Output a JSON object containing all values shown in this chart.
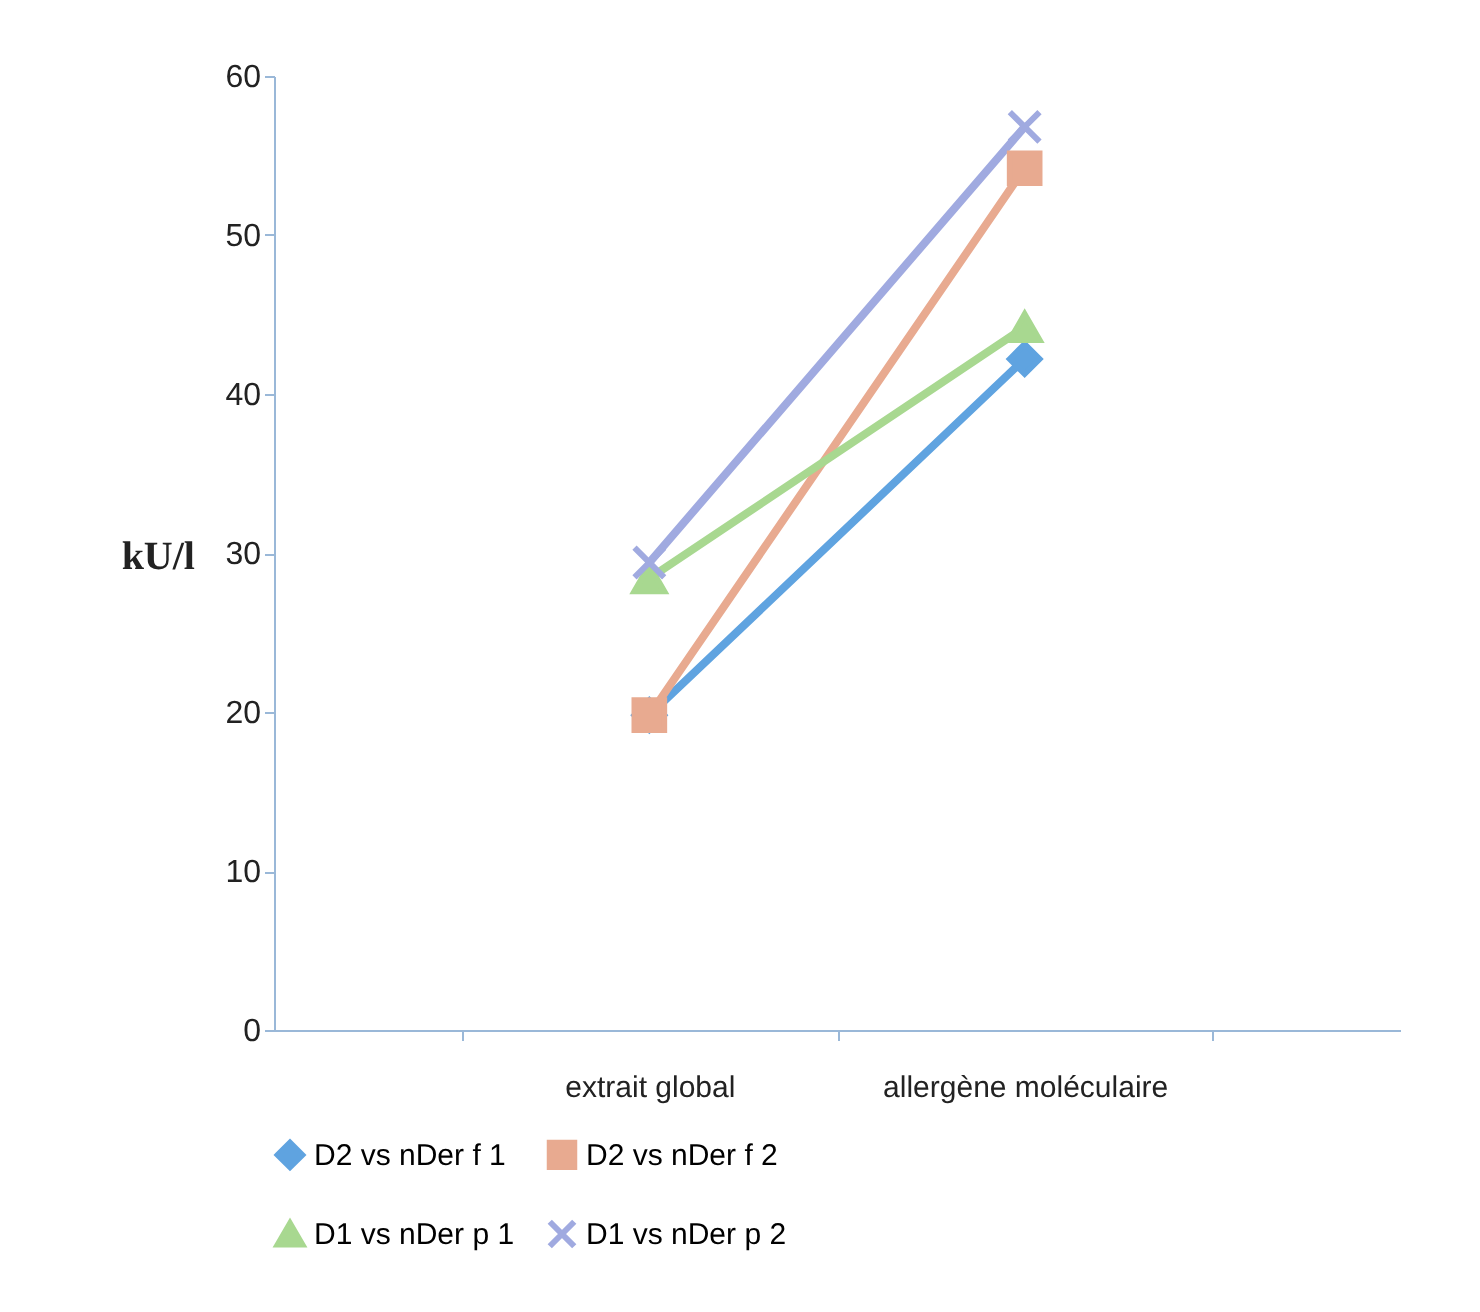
{
  "chart_data": {
    "type": "line",
    "ylabel": "kU/l",
    "categories": [
      "extrait global",
      "allergène moléculaire"
    ],
    "series": [
      {
        "name": "D2 vs nDer f 1",
        "color": "#5fa3e0",
        "marker": "diamond",
        "values": [
          19.8,
          42.2
        ]
      },
      {
        "name": "D2 vs nDer f 2",
        "color": "#e8aa90",
        "marker": "square",
        "values": [
          19.8,
          54.2
        ]
      },
      {
        "name": "D1 vs nDer p 1",
        "color": "#a8d890",
        "marker": "triangle",
        "values": [
          28.4,
          44.2
        ]
      },
      {
        "name": "D1 vs nDer p 2",
        "color": "#a0aae0",
        "marker": "cross",
        "values": [
          29.4,
          56.8
        ]
      }
    ],
    "ylim": [
      0,
      60
    ],
    "yticks": [
      0,
      10,
      20,
      30,
      40,
      50,
      60
    ],
    "grid": false,
    "legend": "bottom"
  }
}
